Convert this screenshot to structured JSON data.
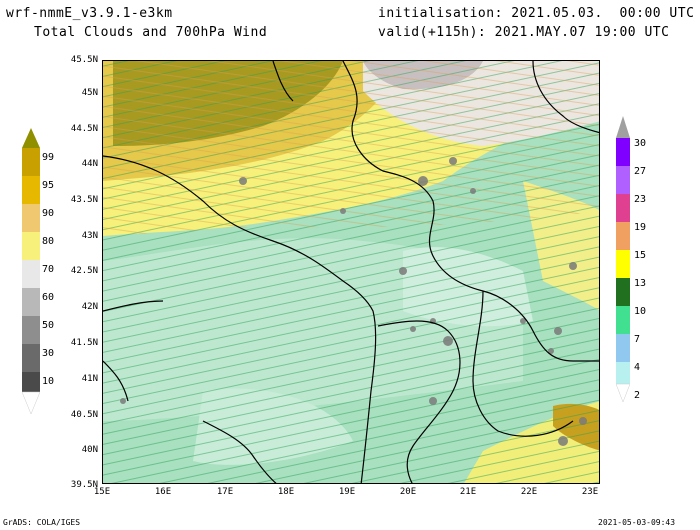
{
  "header": {
    "model": "wrf-nmmE_v3.9.1-e3km",
    "product": "Total Clouds and 700hPa Wind",
    "init": "initialisation: 2021.05.03.  00:00 UTC",
    "valid": "valid(+115h): 2021.MAY.07 19:00 UTC"
  },
  "axes": {
    "lat_labels": [
      "45.5N",
      "45N",
      "44.5N",
      "44N",
      "43.5N",
      "43N",
      "42.5N",
      "42N",
      "41.5N",
      "41N",
      "40.5N",
      "40N",
      "39.5N"
    ],
    "lon_labels": [
      "15E",
      "16E",
      "17E",
      "18E",
      "19E",
      "20E",
      "21E",
      "22E",
      "23E"
    ]
  },
  "left_colorbar": {
    "labels": [
      "99",
      "95",
      "90",
      "80",
      "70",
      "60",
      "50",
      "30",
      "10"
    ],
    "colors": [
      "#8f8f00",
      "#c8a000",
      "#e6b800",
      "#f0c870",
      "#f7f07a",
      "#b8b8b8",
      "#8e8e8e",
      "#6a6a6a",
      "#4a4a4a"
    ]
  },
  "right_colorbar": {
    "labels": [
      "30",
      "27",
      "23",
      "19",
      "15",
      "13",
      "10",
      "7",
      "4",
      "2"
    ],
    "colors": [
      "#8000ff",
      "#b060ff",
      "#e04090",
      "#f0a060",
      "#ffff00",
      "#207020",
      "#40e090",
      "#90c8f0",
      "#b8f0f0"
    ]
  },
  "footer": {
    "left": "GrADS: COLA/IGES",
    "right": "2021-05-03-09:43"
  }
}
